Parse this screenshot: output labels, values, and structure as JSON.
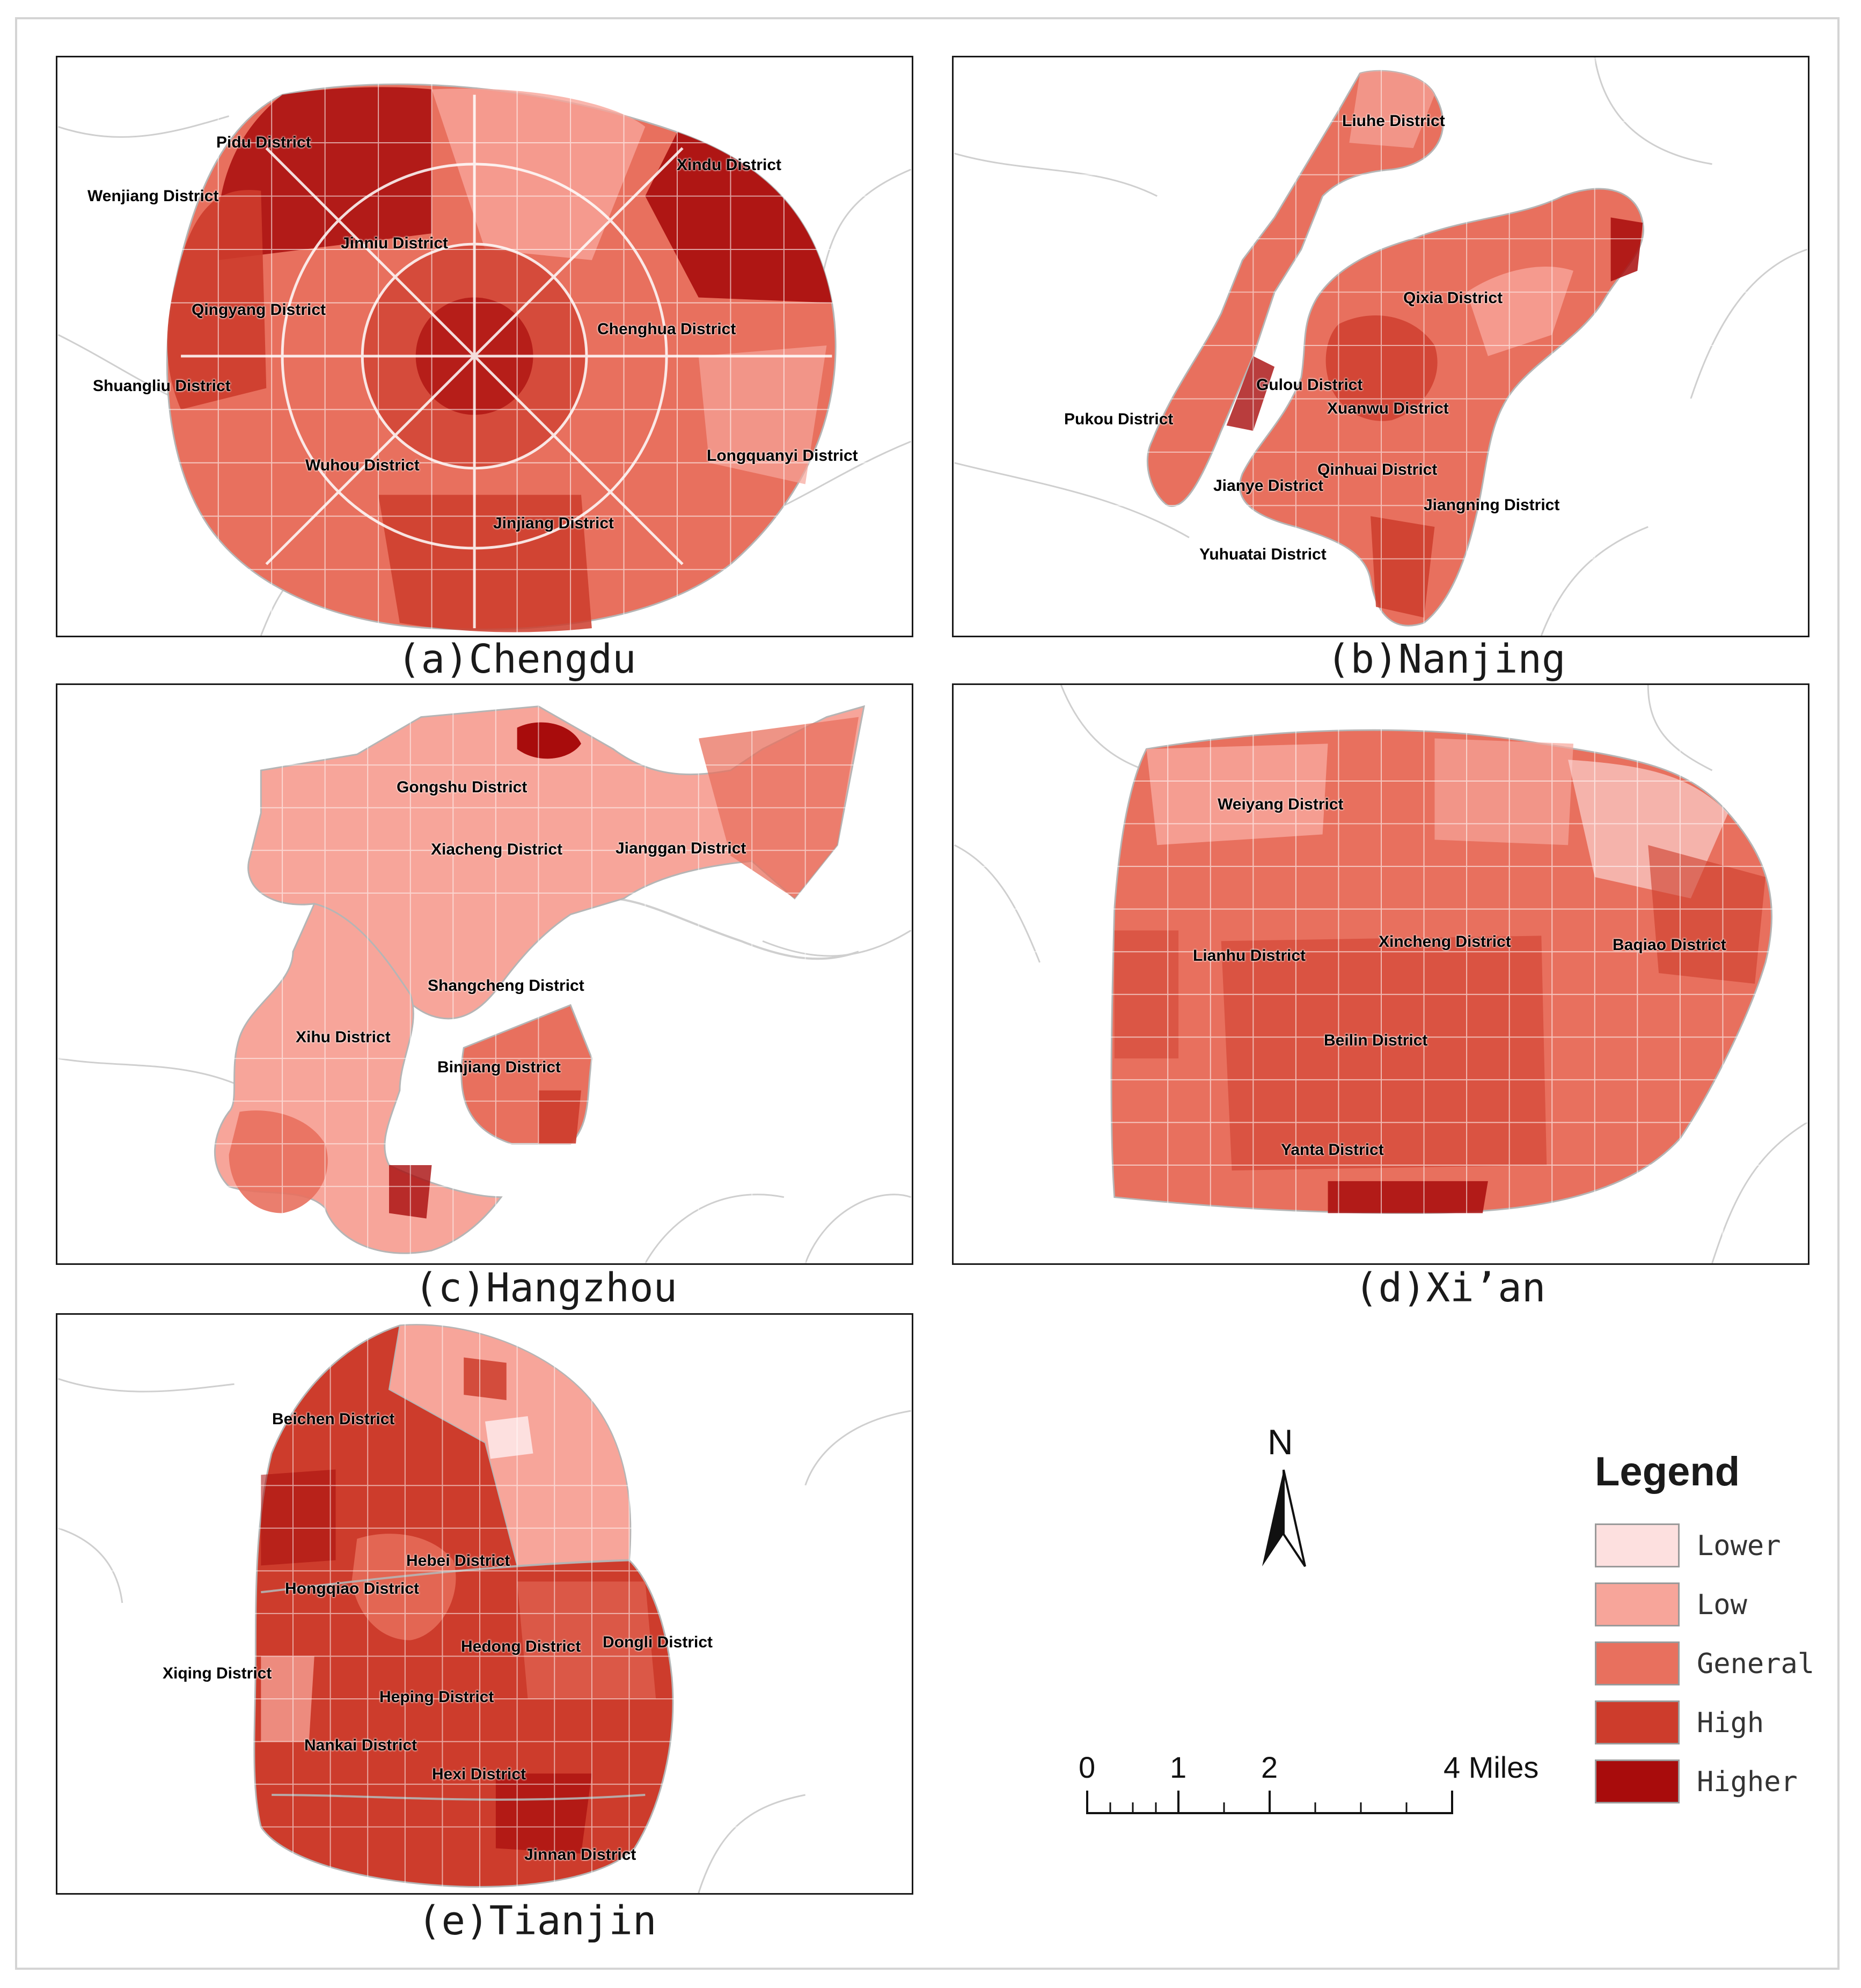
{
  "panels": [
    {
      "id": "chengdu",
      "caption": "(a)Chengdu",
      "districts": [
        "Pidu District",
        "Xindu District",
        "Wenjiang District",
        "Jinniu District",
        "Qingyang District",
        "Chenghua District",
        "Shuangliu District",
        "Longquanyi District",
        "Wuhou District",
        "Jinjiang District"
      ]
    },
    {
      "id": "nanjing",
      "caption": "(b)Nanjing",
      "districts": [
        "Liuhe District",
        "Qixia District",
        "Gulou District",
        "Xuanwu District",
        "Pukou District",
        "Qinhuai District",
        "Jianye District",
        "Jiangning District",
        "Yuhuatai District"
      ]
    },
    {
      "id": "hangzhou",
      "caption": "(c)Hangzhou",
      "districts": [
        "Gongshu District",
        "Xiacheng District",
        "Jianggan District",
        "Shangcheng District",
        "Xihu District",
        "Binjiang District"
      ]
    },
    {
      "id": "xian",
      "caption": "(d)Xi’an",
      "districts": [
        "Weiyang District",
        "Lianhu District",
        "Xincheng District",
        "Baqiao District",
        "Beilin District",
        "Yanta District"
      ]
    },
    {
      "id": "tianjin",
      "caption": "(e)Tianjin",
      "districts": [
        "Beichen District",
        "Hebei District",
        "Hongqiao District",
        "Hedong District",
        "Dongli District",
        "Xiqing District",
        "Heping District",
        "Nankai District",
        "Hexi District",
        "Jinnan District"
      ]
    }
  ],
  "legend": {
    "title": "Legend",
    "items": [
      {
        "label": "Lower",
        "color": "#fde0df"
      },
      {
        "label": "Low",
        "color": "#f7a59a"
      },
      {
        "label": "General",
        "color": "#e8705e"
      },
      {
        "label": "High",
        "color": "#cd3c2c"
      },
      {
        "label": "Higher",
        "color": "#a80c0c"
      }
    ]
  },
  "north_arrow": {
    "label": "N"
  },
  "scale_bar": {
    "ticks": [
      "0",
      "1",
      "2",
      "4 Miles"
    ]
  }
}
